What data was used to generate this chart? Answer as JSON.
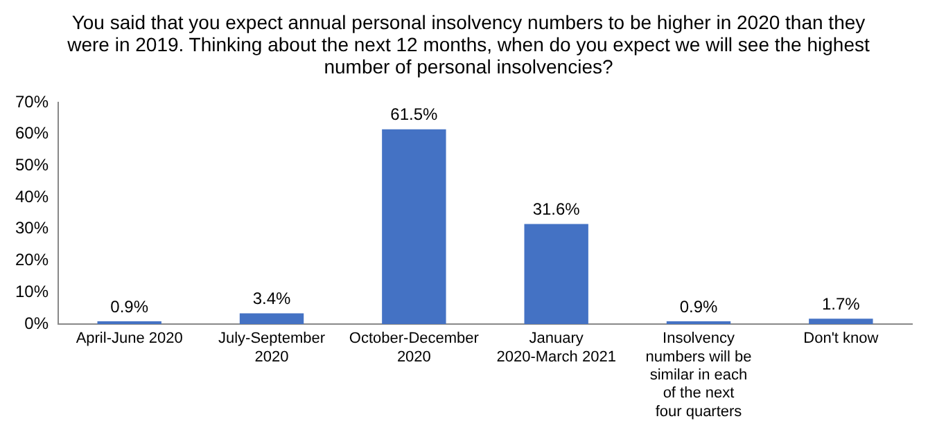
{
  "chart_data": {
    "type": "bar",
    "title": "You said that you expect annual personal insolvency numbers to be higher in 2020 than they were in 2019. Thinking about the next 12 months, when do you expect we will see the highest number of personal insolvencies?",
    "categories": [
      "April-June 2020",
      "July-September 2020",
      "October-December 2020",
      "January 2020-March 2021",
      "Insolvency numbers will be similar in each of the next four quarters",
      "Don't know"
    ],
    "values": [
      0.9,
      3.4,
      61.5,
      31.6,
      0.9,
      1.7
    ],
    "value_labels": [
      "0.9%",
      "3.4%",
      "61.5%",
      "31.6%",
      "0.9%",
      "1.7%"
    ],
    "color": "#4472c4",
    "ylim": [
      0,
      70
    ],
    "yticks": [
      {
        "value": 0,
        "label": "0%"
      },
      {
        "value": 10,
        "label": "10%"
      },
      {
        "value": 20,
        "label": "20%"
      },
      {
        "value": 30,
        "label": "30%"
      },
      {
        "value": 40,
        "label": "40%"
      },
      {
        "value": 50,
        "label": "50%"
      },
      {
        "value": 60,
        "label": "60%"
      },
      {
        "value": 70,
        "label": "70%"
      }
    ],
    "grid": false,
    "legend": false
  }
}
